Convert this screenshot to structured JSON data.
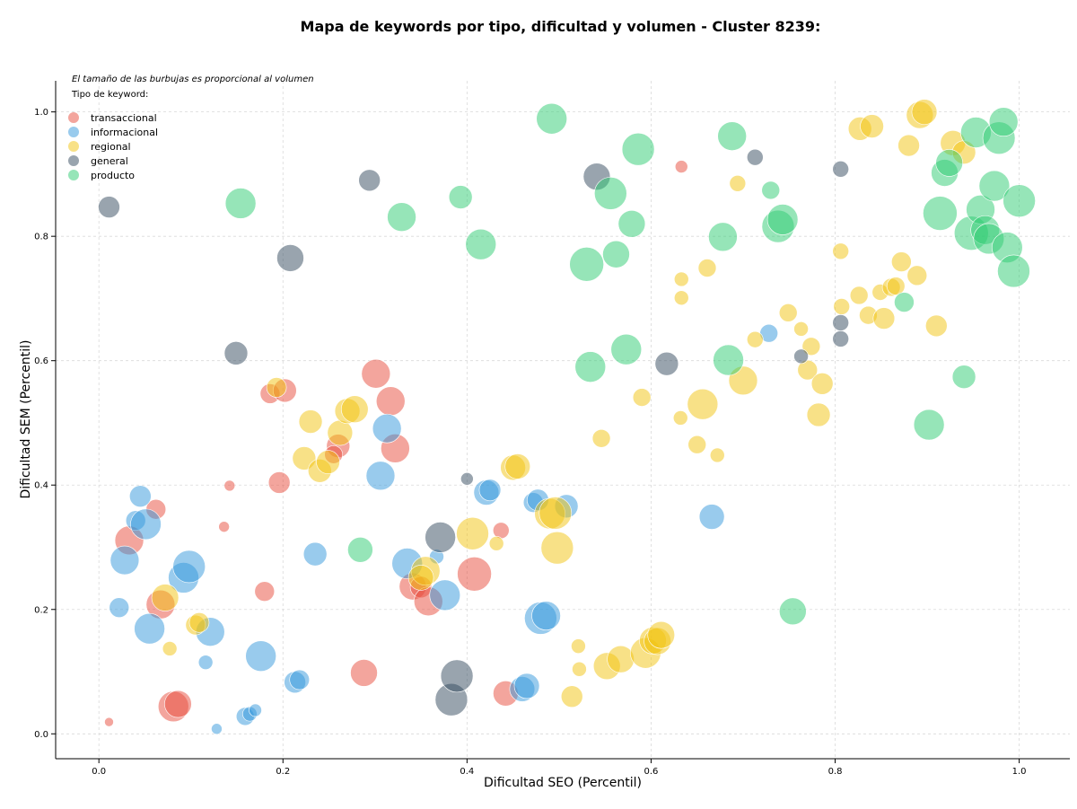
{
  "title": "Mapa de keywords por tipo, dificultad y volumen - Cluster 8239:",
  "chart_data": {
    "type": "scatter",
    "title": "Mapa de keywords por tipo, dificultad y volumen - Cluster 8239:",
    "xlabel": "Dificultad SEO (Percentil)",
    "ylabel": "Dificultad SEM (Percentil)",
    "xlim": [
      -0.047,
      1.055
    ],
    "ylim": [
      -0.04,
      1.05
    ],
    "xticks": [
      "0.0",
      "0.2",
      "0.4",
      "0.6",
      "0.8",
      "1.0"
    ],
    "yticks": [
      "0.0",
      "0.2",
      "0.4",
      "0.6",
      "0.8",
      "1.0"
    ],
    "grid": true,
    "legend_placement": "top-left",
    "note": "El tamaño de las burbujas es proporcional al volumen",
    "legend_title": "Tipo de keyword:",
    "series": [
      {
        "name": "transaccional",
        "color": "#e74c3c",
        "points": [
          [
            0.011,
            0.019,
            5
          ],
          [
            0.033,
            0.311,
            16
          ],
          [
            0.062,
            0.361,
            11
          ],
          [
            0.067,
            0.208,
            16
          ],
          [
            0.081,
            0.044,
            17
          ],
          [
            0.086,
            0.048,
            15
          ],
          [
            0.136,
            0.333,
            6
          ],
          [
            0.142,
            0.399,
            6
          ],
          [
            0.18,
            0.229,
            11
          ],
          [
            0.186,
            0.547,
            11
          ],
          [
            0.202,
            0.552,
            13
          ],
          [
            0.196,
            0.404,
            12
          ],
          [
            0.26,
            0.463,
            13
          ],
          [
            0.255,
            0.449,
            10
          ],
          [
            0.301,
            0.579,
            16
          ],
          [
            0.317,
            0.535,
            16
          ],
          [
            0.322,
            0.459,
            16
          ],
          [
            0.288,
            0.098,
            15
          ],
          [
            0.341,
            0.237,
            15
          ],
          [
            0.35,
            0.236,
            12
          ],
          [
            0.358,
            0.213,
            16
          ],
          [
            0.408,
            0.257,
            19
          ],
          [
            0.437,
            0.327,
            9
          ],
          [
            0.442,
            0.065,
            14
          ],
          [
            0.633,
            0.912,
            7
          ]
        ]
      },
      {
        "name": "informacional",
        "color": "#3498db",
        "points": [
          [
            0.022,
            0.203,
            11
          ],
          [
            0.028,
            0.279,
            16
          ],
          [
            0.04,
            0.343,
            11
          ],
          [
            0.045,
            0.382,
            12
          ],
          [
            0.051,
            0.337,
            17
          ],
          [
            0.055,
            0.169,
            17
          ],
          [
            0.092,
            0.251,
            17
          ],
          [
            0.098,
            0.269,
            18
          ],
          [
            0.116,
            0.115,
            8
          ],
          [
            0.121,
            0.164,
            16
          ],
          [
            0.128,
            0.008,
            6
          ],
          [
            0.159,
            0.028,
            10
          ],
          [
            0.164,
            0.032,
            8
          ],
          [
            0.17,
            0.038,
            7
          ],
          [
            0.176,
            0.125,
            17
          ],
          [
            0.213,
            0.083,
            12
          ],
          [
            0.218,
            0.087,
            11
          ],
          [
            0.235,
            0.289,
            13
          ],
          [
            0.306,
            0.415,
            16
          ],
          [
            0.313,
            0.491,
            16
          ],
          [
            0.335,
            0.274,
            17
          ],
          [
            0.367,
            0.285,
            8
          ],
          [
            0.376,
            0.223,
            17
          ],
          [
            0.421,
            0.388,
            14
          ],
          [
            0.425,
            0.392,
            12
          ],
          [
            0.46,
            0.072,
            14
          ],
          [
            0.465,
            0.077,
            14
          ],
          [
            0.472,
            0.372,
            11
          ],
          [
            0.477,
            0.376,
            12
          ],
          [
            0.48,
            0.186,
            18
          ],
          [
            0.486,
            0.19,
            16
          ],
          [
            0.508,
            0.366,
            13
          ],
          [
            0.666,
            0.349,
            14
          ],
          [
            0.728,
            0.644,
            10
          ]
        ]
      },
      {
        "name": "regional",
        "color": "#f1c40f",
        "points": [
          [
            0.072,
            0.219,
            15
          ],
          [
            0.077,
            0.137,
            8
          ],
          [
            0.105,
            0.175,
            11
          ],
          [
            0.109,
            0.179,
            11
          ],
          [
            0.193,
            0.557,
            11
          ],
          [
            0.23,
            0.502,
            13
          ],
          [
            0.223,
            0.443,
            13
          ],
          [
            0.24,
            0.423,
            13
          ],
          [
            0.249,
            0.437,
            13
          ],
          [
            0.262,
            0.484,
            14
          ],
          [
            0.27,
            0.519,
            14
          ],
          [
            0.278,
            0.522,
            15
          ],
          [
            0.355,
            0.262,
            16
          ],
          [
            0.35,
            0.251,
            14
          ],
          [
            0.406,
            0.322,
            18
          ],
          [
            0.432,
            0.306,
            8
          ],
          [
            0.45,
            0.428,
            14
          ],
          [
            0.455,
            0.43,
            14
          ],
          [
            0.49,
            0.354,
            17
          ],
          [
            0.496,
            0.355,
            18
          ],
          [
            0.498,
            0.299,
            18
          ],
          [
            0.521,
            0.141,
            8
          ],
          [
            0.522,
            0.104,
            8
          ],
          [
            0.514,
            0.06,
            12
          ],
          [
            0.546,
            0.475,
            10
          ],
          [
            0.552,
            0.109,
            15
          ],
          [
            0.567,
            0.12,
            15
          ],
          [
            0.59,
            0.541,
            10
          ],
          [
            0.594,
            0.13,
            17
          ],
          [
            0.602,
            0.15,
            15
          ],
          [
            0.607,
            0.149,
            15
          ],
          [
            0.611,
            0.159,
            15
          ],
          [
            0.632,
            0.508,
            8
          ],
          [
            0.633,
            0.731,
            8
          ],
          [
            0.633,
            0.701,
            8
          ],
          [
            0.65,
            0.465,
            10
          ],
          [
            0.656,
            0.53,
            17
          ],
          [
            0.661,
            0.749,
            10
          ],
          [
            0.672,
            0.448,
            8
          ],
          [
            0.694,
            0.885,
            9
          ],
          [
            0.7,
            0.568,
            16
          ],
          [
            0.713,
            0.634,
            9
          ],
          [
            0.749,
            0.677,
            10
          ],
          [
            0.763,
            0.651,
            8
          ],
          [
            0.77,
            0.585,
            11
          ],
          [
            0.774,
            0.623,
            10
          ],
          [
            0.782,
            0.513,
            13
          ],
          [
            0.786,
            0.563,
            12
          ],
          [
            0.806,
            0.776,
            9
          ],
          [
            0.807,
            0.687,
            9
          ],
          [
            0.826,
            0.705,
            10
          ],
          [
            0.836,
            0.673,
            10
          ],
          [
            0.827,
            0.973,
            13
          ],
          [
            0.84,
            0.977,
            13
          ],
          [
            0.849,
            0.71,
            9
          ],
          [
            0.853,
            0.668,
            12
          ],
          [
            0.861,
            0.718,
            10
          ],
          [
            0.866,
            0.72,
            10
          ],
          [
            0.872,
            0.759,
            11
          ],
          [
            0.88,
            0.946,
            12
          ],
          [
            0.889,
            0.737,
            11
          ],
          [
            0.892,
            0.995,
            15
          ],
          [
            0.897,
            1.0,
            14
          ],
          [
            0.91,
            0.656,
            12
          ],
          [
            0.928,
            0.95,
            14
          ],
          [
            0.94,
            0.935,
            13
          ]
        ]
      },
      {
        "name": "general",
        "color": "#34495e",
        "points": [
          [
            0.011,
            0.847,
            12
          ],
          [
            0.149,
            0.612,
            13
          ],
          [
            0.208,
            0.765,
            15
          ],
          [
            0.294,
            0.89,
            12
          ],
          [
            0.371,
            0.316,
            17
          ],
          [
            0.383,
            0.055,
            18
          ],
          [
            0.389,
            0.093,
            18
          ],
          [
            0.4,
            0.41,
            7
          ],
          [
            0.541,
            0.896,
            15
          ],
          [
            0.617,
            0.595,
            13
          ],
          [
            0.713,
            0.927,
            9
          ],
          [
            0.763,
            0.607,
            8
          ],
          [
            0.806,
            0.908,
            9
          ],
          [
            0.806,
            0.661,
            9
          ],
          [
            0.806,
            0.635,
            9
          ]
        ]
      },
      {
        "name": "producto",
        "color": "#2ecc71",
        "points": [
          [
            0.154,
            0.853,
            17
          ],
          [
            0.284,
            0.296,
            14
          ],
          [
            0.329,
            0.831,
            16
          ],
          [
            0.393,
            0.863,
            13
          ],
          [
            0.415,
            0.787,
            17
          ],
          [
            0.492,
            0.989,
            17
          ],
          [
            0.53,
            0.755,
            19
          ],
          [
            0.534,
            0.59,
            17
          ],
          [
            0.556,
            0.869,
            18
          ],
          [
            0.562,
            0.771,
            15
          ],
          [
            0.573,
            0.618,
            17
          ],
          [
            0.579,
            0.82,
            15
          ],
          [
            0.586,
            0.94,
            18
          ],
          [
            0.678,
            0.799,
            16
          ],
          [
            0.688,
            0.961,
            16
          ],
          [
            0.684,
            0.601,
            17
          ],
          [
            0.73,
            0.874,
            10
          ],
          [
            0.738,
            0.816,
            18
          ],
          [
            0.743,
            0.827,
            17
          ],
          [
            0.754,
            0.197,
            15
          ],
          [
            0.875,
            0.694,
            11
          ],
          [
            0.902,
            0.497,
            17
          ],
          [
            0.914,
            0.837,
            19
          ],
          [
            0.919,
            0.902,
            15
          ],
          [
            0.924,
            0.918,
            15
          ],
          [
            0.94,
            0.574,
            13
          ],
          [
            0.948,
            0.805,
            19
          ],
          [
            0.953,
            0.967,
            17
          ],
          [
            0.958,
            0.843,
            16
          ],
          [
            0.963,
            0.81,
            16
          ],
          [
            0.967,
            0.796,
            17
          ],
          [
            0.973,
            0.881,
            17
          ],
          [
            0.978,
            0.958,
            18
          ],
          [
            0.983,
            0.984,
            16
          ],
          [
            0.987,
            0.782,
            17
          ],
          [
            0.994,
            0.744,
            18
          ],
          [
            1.0,
            0.857,
            18
          ]
        ]
      }
    ]
  }
}
